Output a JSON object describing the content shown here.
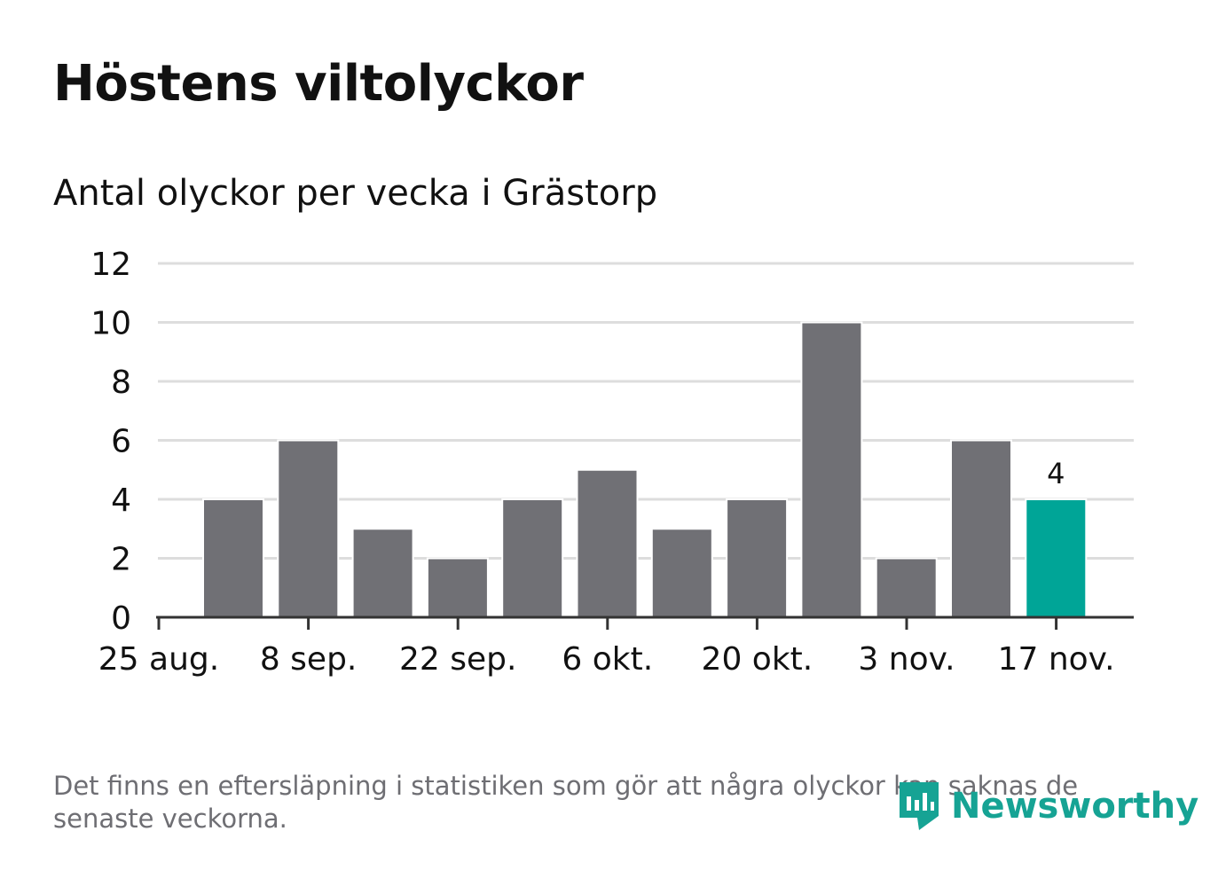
{
  "title": "Höstens viltolyckor",
  "subtitle": "Antal olyckor per vecka i Grästorp",
  "footnote": "Det finns en eftersläpning i statistiken som gör att några olyckor kan saknas de senaste veckorna.",
  "logo_text": "Newsworthy",
  "colors": {
    "bar": "#707075",
    "highlight": "#00a597",
    "grid": "#dddddd",
    "axis": "#333333",
    "text": "#111111",
    "muted": "#6e6e73"
  },
  "chart_data": {
    "type": "bar",
    "x_tick_labels": [
      "25 aug.",
      "8 sep.",
      "22 sep.",
      "6 okt.",
      "20 okt.",
      "3 nov.",
      "17 nov."
    ],
    "values": [
      4,
      6,
      3,
      2,
      4,
      5,
      3,
      4,
      10,
      2,
      6,
      4
    ],
    "highlight_index": 11,
    "highlight_label": "4",
    "y_ticks": [
      0,
      2,
      4,
      6,
      8,
      10,
      12
    ],
    "ylim": [
      0,
      12
    ],
    "grid": true
  }
}
